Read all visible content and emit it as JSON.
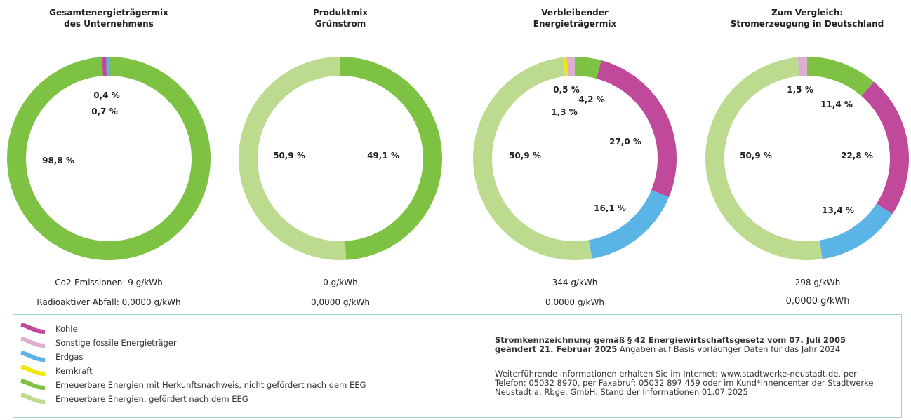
{
  "colors": {
    "kohle": "#c0499b",
    "sonstige": "#dcaed2",
    "erdgas": "#5ab4e5",
    "kernkraft": "#f3e600",
    "ee_hkn": "#7dc242",
    "ee_eeg": "#bddb8e"
  },
  "charts": [
    {
      "title_line1": "Gesamtenergieträgermix",
      "title_line2": "des Unternehmens",
      "co2_label": "Co2-Emissionen:",
      "co2_value": "9 g/kWh",
      "waste_label": "Radioaktiver Abfall:",
      "waste_value": "0,0000 g/kWh",
      "labels": [
        "0,4 %",
        "0,7 %",
        "98,8 %"
      ]
    },
    {
      "title_line1": "Produktmix",
      "title_line2": "Grünstrom",
      "co2_label": "",
      "co2_value": "0 g/kWh",
      "waste_label": "",
      "waste_value": "0,0000 g/kWh",
      "labels": [
        "50,9 %",
        "49,1 %"
      ]
    },
    {
      "title_line1": "Verbleibender",
      "title_line2": "Energieträgermix",
      "co2_label": "",
      "co2_value": "344 g/kWh",
      "waste_label": "",
      "waste_value": "0,0000 g/kWh",
      "labels": [
        "0,5 %",
        "4,2 %",
        "1,3 %",
        "27,0 %",
        "50,9 %",
        "16,1 %"
      ]
    },
    {
      "title_line1": "Zum Vergleich:",
      "title_line2": "Stromerzeugung in Deutschland",
      "co2_label": "",
      "co2_value": "298 g/kWh",
      "waste_label": "",
      "waste_value": "0,0000 g/kWh",
      "labels": [
        "1,5 %",
        "11,4 %",
        "22,8 %",
        "50,9 %",
        "13,4 %"
      ]
    }
  ],
  "chart_data": [
    {
      "type": "pie",
      "title": "Gesamtenergieträgermix des Unternehmens",
      "slices": [
        {
          "category": "Erneuerbare Energien mit Herkunftsnachweis, nicht gefördert nach dem EEG",
          "value": 98.8,
          "color": "#7dc242"
        },
        {
          "category": "Kohle",
          "value": 0.7,
          "color": "#c0499b"
        },
        {
          "category": "Erdgas",
          "value": 0.4,
          "color": "#5ab4e5"
        }
      ]
    },
    {
      "type": "pie",
      "title": "Produktmix Grünstrom",
      "slices": [
        {
          "category": "Erneuerbare Energien mit Herkunftsnachweis, nicht gefördert nach dem EEG",
          "value": 49.1,
          "color": "#7dc242"
        },
        {
          "category": "Erneuerbare Energien, gefördert nach dem EEG",
          "value": 50.9,
          "color": "#bddb8e"
        }
      ]
    },
    {
      "type": "pie",
      "title": "Verbleibender Energieträgermix",
      "slices": [
        {
          "category": "Erneuerbare Energien mit Herkunftsnachweis, nicht gefördert nach dem EEG",
          "value": 4.2,
          "color": "#7dc242"
        },
        {
          "category": "Kohle",
          "value": 27.0,
          "color": "#c0499b"
        },
        {
          "category": "Erdgas",
          "value": 16.1,
          "color": "#5ab4e5"
        },
        {
          "category": "Erneuerbare Energien, gefördert nach dem EEG",
          "value": 50.9,
          "color": "#bddb8e"
        },
        {
          "category": "Kernkraft",
          "value": 0.5,
          "color": "#f3e600"
        },
        {
          "category": "Sonstige fossile Energieträger",
          "value": 1.3,
          "color": "#dcaed2"
        }
      ]
    },
    {
      "type": "pie",
      "title": "Zum Vergleich: Stromerzeugung in Deutschland",
      "slices": [
        {
          "category": "Erneuerbare Energien mit Herkunftsnachweis, nicht gefördert nach dem EEG",
          "value": 11.4,
          "color": "#7dc242"
        },
        {
          "category": "Kohle",
          "value": 22.8,
          "color": "#c0499b"
        },
        {
          "category": "Erdgas",
          "value": 13.4,
          "color": "#5ab4e5"
        },
        {
          "category": "Erneuerbare Energien, gefördert nach dem EEG",
          "value": 50.9,
          "color": "#bddb8e"
        },
        {
          "category": "Sonstige fossile Energieträger",
          "value": 1.5,
          "color": "#dcaed2"
        }
      ]
    }
  ],
  "legend": [
    {
      "label": "Kohle",
      "color": "#c0499b"
    },
    {
      "label": "Sonstige fossile Energieträger",
      "color": "#dcaed2"
    },
    {
      "label": "Erdgas",
      "color": "#5ab4e5"
    },
    {
      "label": "Kernkraft",
      "color": "#f3e600"
    },
    {
      "label": "Erneuerbare Energien mit Herkunftsnachweis, nicht gefördert nach dem EEG",
      "color": "#7dc242"
    },
    {
      "label": "Erneuerbare Energien, gefördert nach dem EEG",
      "color": "#bddb8e"
    }
  ],
  "note": {
    "heading_bold": "Stromkennzeichnung gemäß § 42 Energiewirtschaftsgesetz vom 07. Juli 2005 geändert 21. Februar 2025",
    "heading_rest": " Angaben auf Basis vorläufiger Daten für das Jahr 2024",
    "info": "Weiterführende Informationen erhalten Sie im Internet: www.stadtwerke-neustadt.de, per Telefon: 05032 8970, per Faxabruf: 05032 897 459 oder im Kund*innencenter der Stadtwerke Neustadt a. Rbge. GmbH. Stand der Informationen 01.07.2025"
  }
}
